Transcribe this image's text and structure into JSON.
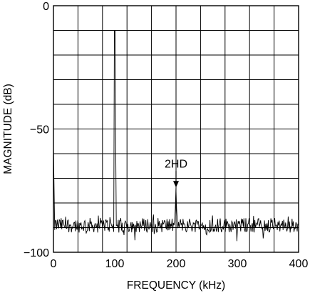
{
  "chart_data": {
    "type": "line",
    "title": "",
    "xlabel": "FREQUENCY (kHz)",
    "ylabel": "MAGNITUDE (dB)",
    "xlim": [
      0,
      400
    ],
    "ylim": [
      -100,
      0
    ],
    "grid": true,
    "x_ticks": [
      0,
      100,
      200,
      300,
      400
    ],
    "x_tick_labels": [
      "0",
      "100",
      "200",
      "300",
      "400"
    ],
    "y_ticks": [
      0,
      -50,
      -100
    ],
    "y_tick_labels": [
      "0",
      "−50",
      "−100"
    ],
    "noise_floor_db": -89,
    "series": [
      {
        "peaks": [
          {
            "x": 0,
            "y": -57
          },
          {
            "x": 100,
            "y": -10
          },
          {
            "x": 200,
            "y": -74
          }
        ]
      }
    ],
    "annotations": [
      {
        "text": "2HD",
        "x": 200,
        "y": -74
      }
    ]
  }
}
